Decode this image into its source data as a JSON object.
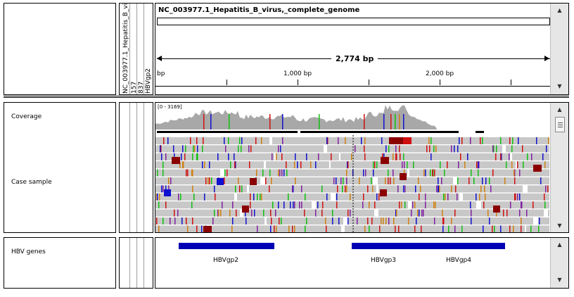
{
  "header": {
    "genome_name": "NC_003977.1_Hepatitis_B_virus,_complete_genome",
    "span_label": "2,774 bp",
    "ruler_ticks": [
      "bp",
      "1,000 bp",
      "2,000 bp"
    ]
  },
  "name_column": {
    "sample_name": "NC_003977.1_Hepatitis_B_vi",
    "value_a": "157",
    "value_b": "837",
    "value_c": "HBVgp2"
  },
  "tracks": {
    "coverage_label": "Coverage",
    "coverage_range": "[0 - 3169]",
    "case_label": "Case sample",
    "genes_label": "HBV genes"
  },
  "genes": [
    {
      "name": "HBVgp2"
    },
    {
      "name": "HBVgp3"
    },
    {
      "name": "HBVgp4"
    }
  ],
  "colors": {
    "gene_blue": "#0000b4",
    "read_gray": "#c8c8c8",
    "mismatch_red": "#d01010",
    "mismatch_green": "#10c010",
    "mismatch_blue": "#1010d0",
    "mismatch_orange": "#d08010",
    "insertion_purple": "#8020a0",
    "dark_red": "#8b0000"
  },
  "icons": {
    "scroll_up": "up-arrow-icon",
    "scroll_down": "down-arrow-icon",
    "menu": "menu-icon"
  }
}
